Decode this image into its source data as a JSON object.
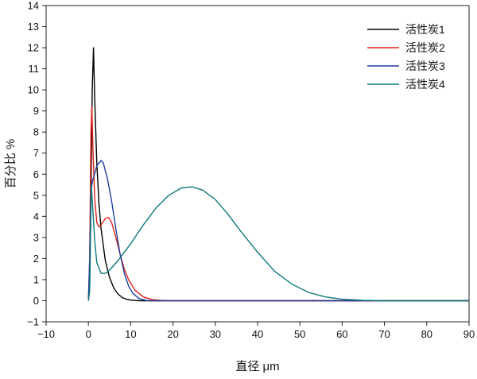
{
  "chart_data": {
    "type": "line",
    "xlabel": "直径 μm",
    "ylabel": "百分比 %",
    "xlim": [
      -10,
      90
    ],
    "ylim": [
      -1,
      14
    ],
    "xticks": [
      "−10",
      "0",
      "10",
      "20",
      "30",
      "40",
      "50",
      "60",
      "70",
      "80",
      "90"
    ],
    "xtick_values": [
      -10,
      0,
      10,
      20,
      30,
      40,
      50,
      60,
      70,
      80,
      90
    ],
    "yticks": [
      "−1",
      "0",
      "1",
      "2",
      "3",
      "4",
      "5",
      "6",
      "7",
      "8",
      "9",
      "10",
      "11",
      "12",
      "13",
      "14"
    ],
    "ytick_values": [
      -1,
      0,
      1,
      2,
      3,
      4,
      5,
      6,
      7,
      8,
      9,
      10,
      11,
      12,
      13,
      14
    ],
    "grid": false,
    "legend_position": "top-right",
    "series": [
      {
        "name": "活性炭1",
        "color": "#000000",
        "x": [
          0,
          0.3,
          0.6,
          0.9,
          1.2,
          1.5,
          2,
          2.5,
          3,
          4,
          5,
          6,
          7,
          8,
          9,
          10,
          12,
          90
        ],
        "y": [
          0,
          0.5,
          5,
          10,
          12,
          9.5,
          6.5,
          4.6,
          3.4,
          1.9,
          1.1,
          0.6,
          0.32,
          0.15,
          0.07,
          0.03,
          0,
          0
        ]
      },
      {
        "name": "活性炭2",
        "color": "#e0201b",
        "x": [
          0,
          0.3,
          0.6,
          0.8,
          1.1,
          1.5,
          2,
          2.5,
          3,
          4,
          4.8,
          5.5,
          6.5,
          7.5,
          8.5,
          9.5,
          11,
          13,
          15,
          18,
          90
        ],
        "y": [
          0,
          2,
          8,
          9.2,
          7,
          4.8,
          3.7,
          3.5,
          3.6,
          3.9,
          3.95,
          3.7,
          3.0,
          2.2,
          1.5,
          1.0,
          0.5,
          0.18,
          0.05,
          0,
          0
        ]
      },
      {
        "name": "活性炭3",
        "color": "#1f3fa0",
        "x": [
          0,
          0.3,
          0.6,
          1,
          1.3,
          2,
          3,
          3.5,
          4.5,
          5.5,
          6.5,
          7.5,
          8.5,
          9.5,
          10.5,
          12,
          14,
          90
        ],
        "y": [
          0,
          2,
          5.2,
          5.7,
          5.9,
          6.4,
          6.65,
          6.55,
          5.8,
          4.7,
          3.4,
          2.2,
          1.3,
          0.7,
          0.35,
          0.1,
          0,
          0
        ]
      },
      {
        "name": "活性炭4",
        "color": "#107a7a",
        "x": [
          0,
          0.3,
          0.5,
          0.7,
          1,
          1.5,
          2,
          3,
          4,
          5,
          7,
          10,
          13,
          16,
          19,
          22,
          24.5,
          27,
          30,
          33,
          36,
          40,
          44,
          48,
          52,
          56,
          60,
          65,
          70,
          90
        ],
        "y": [
          0,
          0.5,
          3,
          5.5,
          4.5,
          2.8,
          1.8,
          1.3,
          1.3,
          1.45,
          1.9,
          2.7,
          3.6,
          4.4,
          5.0,
          5.35,
          5.4,
          5.25,
          4.8,
          4.1,
          3.3,
          2.3,
          1.4,
          0.8,
          0.4,
          0.18,
          0.07,
          0.02,
          0,
          0
        ]
      }
    ]
  }
}
